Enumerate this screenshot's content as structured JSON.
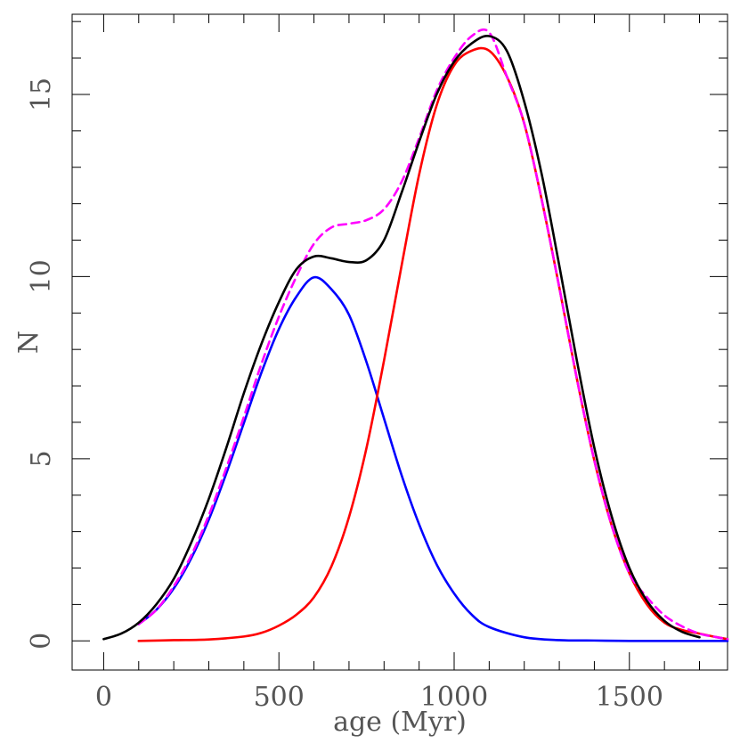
{
  "chart_data": {
    "type": "line",
    "title": "",
    "xlabel": "age (Myr)",
    "ylabel": "N",
    "xlim": [
      -90,
      1780
    ],
    "ylim": [
      -0.8,
      17.2
    ],
    "grid": false,
    "legend": "none",
    "x_major_ticks": [
      0,
      500,
      1000,
      1500
    ],
    "x_minor_step": 100,
    "y_major_ticks": [
      0,
      5,
      10,
      15
    ],
    "y_minor_step": 1,
    "series": [
      {
        "color": "#0000ff",
        "style": "solid",
        "x": [
          100,
          150,
          200,
          250,
          300,
          350,
          400,
          450,
          500,
          550,
          600,
          650,
          700,
          750,
          800,
          850,
          900,
          950,
          1000,
          1050,
          1100,
          1200,
          1300,
          1400,
          1500,
          1600,
          1700,
          1780
        ],
        "y": [
          0.46,
          0.85,
          1.44,
          2.27,
          3.33,
          4.6,
          5.98,
          7.36,
          8.56,
          9.45,
          9.98,
          9.65,
          8.95,
          7.65,
          6.1,
          4.55,
          3.2,
          2.1,
          1.3,
          0.72,
          0.38,
          0.1,
          0.02,
          0.01,
          0,
          0,
          0,
          0
        ]
      },
      {
        "color": "#ff0000",
        "style": "solid",
        "x": [
          100,
          200,
          300,
          400,
          450,
          500,
          550,
          600,
          650,
          700,
          750,
          800,
          850,
          900,
          950,
          1000,
          1050,
          1100,
          1150,
          1200,
          1250,
          1300,
          1350,
          1400,
          1450,
          1500,
          1550,
          1600,
          1650,
          1700,
          1750,
          1780
        ],
        "y": [
          0.0,
          0.02,
          0.04,
          0.12,
          0.22,
          0.42,
          0.72,
          1.2,
          2.05,
          3.4,
          5.3,
          7.7,
          10.3,
          12.8,
          14.7,
          15.8,
          16.2,
          16.2,
          15.5,
          14.2,
          12.1,
          9.7,
          7.2,
          4.95,
          3.15,
          1.85,
          1.0,
          0.5,
          0.3,
          0.2,
          0.1,
          0.05
        ]
      },
      {
        "color": "#ff00ff",
        "style": "dashed",
        "x": [
          100,
          150,
          200,
          250,
          300,
          350,
          400,
          450,
          500,
          550,
          600,
          650,
          700,
          750,
          800,
          850,
          900,
          950,
          1000,
          1050,
          1100,
          1150,
          1200,
          1250,
          1300,
          1350,
          1400,
          1450,
          1500,
          1550,
          1600,
          1650,
          1700,
          1750,
          1780
        ],
        "y": [
          0.46,
          0.85,
          1.5,
          2.35,
          3.45,
          4.75,
          6.15,
          7.6,
          8.9,
          10.0,
          10.9,
          11.35,
          11.45,
          11.55,
          11.85,
          12.6,
          13.8,
          15.1,
          16.0,
          16.6,
          16.7,
          15.5,
          14.2,
          12.1,
          9.7,
          7.2,
          4.95,
          3.15,
          1.85,
          1.2,
          0.7,
          0.4,
          0.2,
          0.1,
          0.05
        ]
      },
      {
        "color": "#000000",
        "style": "solid",
        "x": [
          0,
          50,
          100,
          150,
          200,
          250,
          300,
          350,
          400,
          450,
          500,
          550,
          600,
          650,
          700,
          750,
          800,
          850,
          900,
          950,
          1000,
          1050,
          1100,
          1150,
          1200,
          1250,
          1300,
          1350,
          1400,
          1450,
          1500,
          1550,
          1600,
          1650,
          1700
        ],
        "y": [
          0.05,
          0.2,
          0.5,
          1.0,
          1.7,
          2.7,
          3.9,
          5.3,
          6.8,
          8.15,
          9.3,
          10.2,
          10.55,
          10.5,
          10.4,
          10.45,
          11.0,
          12.3,
          13.7,
          15.0,
          15.9,
          16.4,
          16.6,
          16.2,
          14.8,
          12.8,
          10.3,
          7.7,
          5.3,
          3.4,
          2.0,
          1.1,
          0.55,
          0.25,
          0.1
        ]
      }
    ]
  }
}
